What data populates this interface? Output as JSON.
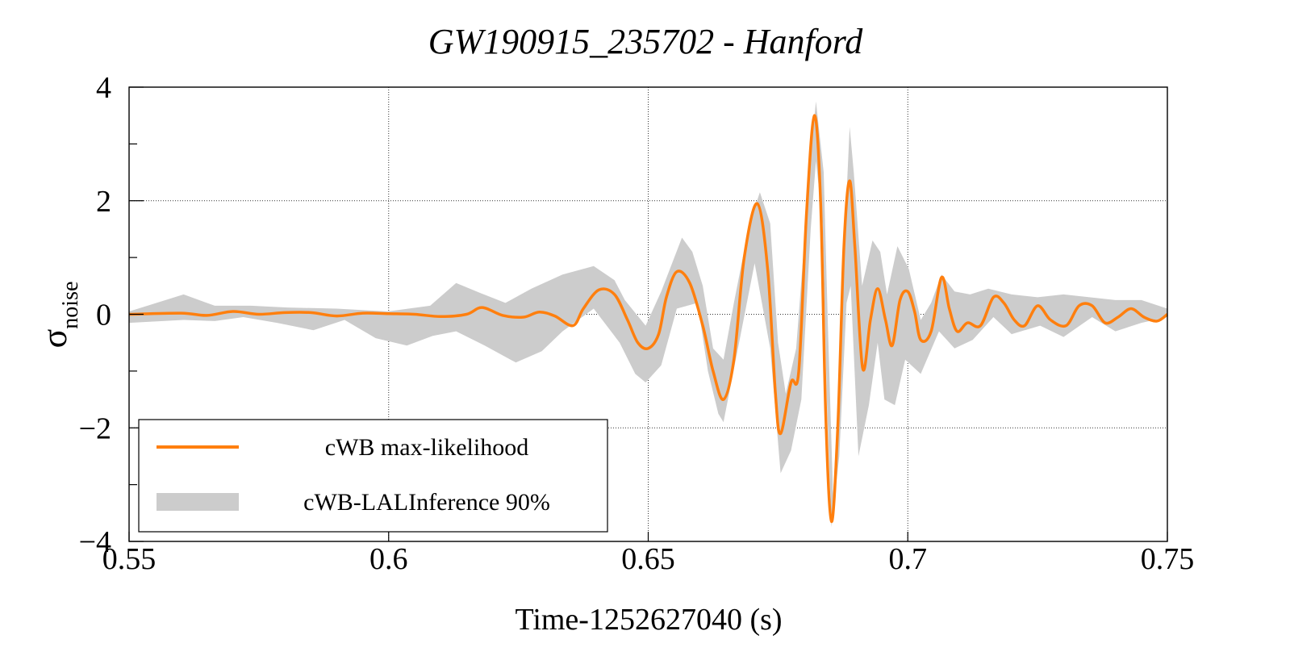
{
  "chart_data": {
    "type": "line",
    "title": "GW190915_235702 - Hanford",
    "xlabel": "Time-1252627040 (s)",
    "ylabel": "σ",
    "ylabel_sub": "noise",
    "xlim": [
      0.55,
      0.75
    ],
    "ylim": [
      -4,
      4
    ],
    "x_ticks": [
      0.55,
      0.6,
      0.65,
      0.7,
      0.75
    ],
    "x_tick_labels": [
      "0.55",
      "0.6",
      "0.65",
      "0.7",
      "0.75"
    ],
    "y_ticks": [
      -4,
      -2,
      0,
      2,
      4
    ],
    "y_tick_labels": [
      "−4",
      "−2",
      "0",
      "2",
      "4"
    ],
    "y_minor_ticks": [
      -3,
      -1,
      1,
      3
    ],
    "grid": true,
    "legend_position": "bottom-left",
    "colors": {
      "line": "#ff7f0e",
      "band": "#cccccc"
    },
    "series": [
      {
        "name": "cWB max-likelihood",
        "kind": "line",
        "points": [
          [
            0.55,
            0.0
          ],
          [
            0.56,
            0.02
          ],
          [
            0.565,
            -0.02
          ],
          [
            0.57,
            0.05
          ],
          [
            0.575,
            0.0
          ],
          [
            0.58,
            0.03
          ],
          [
            0.585,
            0.03
          ],
          [
            0.59,
            -0.03
          ],
          [
            0.595,
            0.02
          ],
          [
            0.6,
            0.01
          ],
          [
            0.605,
            0.0
          ],
          [
            0.61,
            -0.04
          ],
          [
            0.615,
            0.0
          ],
          [
            0.618,
            0.12
          ],
          [
            0.622,
            -0.02
          ],
          [
            0.626,
            -0.05
          ],
          [
            0.629,
            0.04
          ],
          [
            0.632,
            -0.03
          ],
          [
            0.6355,
            -0.2
          ],
          [
            0.6375,
            0.1
          ],
          [
            0.6405,
            0.43
          ],
          [
            0.6435,
            0.35
          ],
          [
            0.646,
            -0.1
          ],
          [
            0.648,
            -0.5
          ],
          [
            0.65,
            -0.6
          ],
          [
            0.652,
            -0.35
          ],
          [
            0.6535,
            0.3
          ],
          [
            0.6555,
            0.75
          ],
          [
            0.658,
            0.55
          ],
          [
            0.6605,
            -0.2
          ],
          [
            0.6625,
            -1.0
          ],
          [
            0.6645,
            -1.5
          ],
          [
            0.6665,
            -0.8
          ],
          [
            0.6685,
            1.0
          ],
          [
            0.671,
            1.95
          ],
          [
            0.673,
            0.8
          ],
          [
            0.6745,
            -1.4
          ],
          [
            0.6755,
            -2.1
          ],
          [
            0.6775,
            -1.2
          ],
          [
            0.679,
            -1.0
          ],
          [
            0.6805,
            1.8
          ],
          [
            0.682,
            3.5
          ],
          [
            0.6832,
            2.0
          ],
          [
            0.6842,
            -1.8
          ],
          [
            0.6853,
            -3.65
          ],
          [
            0.6865,
            -2.0
          ],
          [
            0.6877,
            1.2
          ],
          [
            0.6888,
            2.35
          ],
          [
            0.6898,
            1.2
          ],
          [
            0.6913,
            -0.95
          ],
          [
            0.6928,
            -0.1
          ],
          [
            0.6942,
            0.45
          ],
          [
            0.6957,
            -0.1
          ],
          [
            0.697,
            -0.55
          ],
          [
            0.6985,
            0.25
          ],
          [
            0.7,
            0.4
          ],
          [
            0.7013,
            0.05
          ],
          [
            0.7025,
            -0.45
          ],
          [
            0.7045,
            -0.3
          ],
          [
            0.7065,
            0.65
          ],
          [
            0.708,
            0.1
          ],
          [
            0.7095,
            -0.3
          ],
          [
            0.7115,
            -0.15
          ],
          [
            0.714,
            -0.2
          ],
          [
            0.7165,
            0.3
          ],
          [
            0.7185,
            0.2
          ],
          [
            0.7205,
            -0.1
          ],
          [
            0.7225,
            -0.2
          ],
          [
            0.725,
            0.15
          ],
          [
            0.7275,
            -0.1
          ],
          [
            0.7305,
            -0.2
          ],
          [
            0.733,
            0.15
          ],
          [
            0.7355,
            0.15
          ],
          [
            0.738,
            -0.15
          ],
          [
            0.7405,
            -0.05
          ],
          [
            0.743,
            0.1
          ],
          [
            0.7455,
            -0.05
          ],
          [
            0.748,
            -0.12
          ],
          [
            0.75,
            0.0
          ]
        ]
      },
      {
        "name": "cWB-LALInference 90%",
        "kind": "band",
        "upper": [
          [
            0.55,
            0.05
          ],
          [
            0.5605,
            0.35
          ],
          [
            0.5665,
            0.15
          ],
          [
            0.5735,
            0.15
          ],
          [
            0.5805,
            0.12
          ],
          [
            0.59,
            0.1
          ],
          [
            0.5998,
            0.05
          ],
          [
            0.608,
            0.15
          ],
          [
            0.613,
            0.55
          ],
          [
            0.6175,
            0.38
          ],
          [
            0.6225,
            0.2
          ],
          [
            0.6275,
            0.45
          ],
          [
            0.6335,
            0.7
          ],
          [
            0.6395,
            0.85
          ],
          [
            0.6435,
            0.6
          ],
          [
            0.6455,
            0.25
          ],
          [
            0.6495,
            -0.2
          ],
          [
            0.6525,
            0.4
          ],
          [
            0.6565,
            1.35
          ],
          [
            0.6585,
            1.1
          ],
          [
            0.6605,
            0.5
          ],
          [
            0.6625,
            -0.6
          ],
          [
            0.6645,
            -0.8
          ],
          [
            0.6665,
            0.2
          ],
          [
            0.6695,
            1.6
          ],
          [
            0.6715,
            2.15
          ],
          [
            0.6735,
            1.6
          ],
          [
            0.675,
            -0.5
          ],
          [
            0.6765,
            -1.4
          ],
          [
            0.6785,
            -0.6
          ],
          [
            0.6815,
            3.0
          ],
          [
            0.6823,
            3.75
          ],
          [
            0.6838,
            2.5
          ],
          [
            0.6846,
            -0.2
          ],
          [
            0.6856,
            -3.2
          ],
          [
            0.6866,
            -1.5
          ],
          [
            0.6878,
            1.3
          ],
          [
            0.6888,
            3.3
          ],
          [
            0.6896,
            2.5
          ],
          [
            0.6912,
            0.5
          ],
          [
            0.6932,
            1.3
          ],
          [
            0.6947,
            1.1
          ],
          [
            0.696,
            0.35
          ],
          [
            0.698,
            1.2
          ],
          [
            0.7002,
            0.8
          ],
          [
            0.7025,
            -0.1
          ],
          [
            0.7045,
            0.2
          ],
          [
            0.7065,
            0.7
          ],
          [
            0.709,
            0.4
          ],
          [
            0.712,
            0.35
          ],
          [
            0.7155,
            0.45
          ],
          [
            0.72,
            0.35
          ],
          [
            0.725,
            0.3
          ],
          [
            0.73,
            0.35
          ],
          [
            0.735,
            0.3
          ],
          [
            0.74,
            0.25
          ],
          [
            0.745,
            0.25
          ],
          [
            0.75,
            0.1
          ]
        ],
        "lower": [
          [
            0.55,
            -0.15
          ],
          [
            0.5605,
            -0.1
          ],
          [
            0.5665,
            -0.12
          ],
          [
            0.572,
            -0.05
          ],
          [
            0.5785,
            -0.15
          ],
          [
            0.5855,
            -0.28
          ],
          [
            0.5915,
            -0.1
          ],
          [
            0.5975,
            -0.42
          ],
          [
            0.6035,
            -0.55
          ],
          [
            0.6085,
            -0.38
          ],
          [
            0.613,
            -0.3
          ],
          [
            0.6185,
            -0.55
          ],
          [
            0.6245,
            -0.85
          ],
          [
            0.6295,
            -0.65
          ],
          [
            0.6335,
            -0.3
          ],
          [
            0.6395,
            0.1
          ],
          [
            0.6445,
            -0.5
          ],
          [
            0.6475,
            -1.05
          ],
          [
            0.6495,
            -1.2
          ],
          [
            0.6525,
            -0.9
          ],
          [
            0.6555,
            0.1
          ],
          [
            0.6595,
            0.2
          ],
          [
            0.6615,
            -1.0
          ],
          [
            0.6635,
            -1.75
          ],
          [
            0.6645,
            -1.9
          ],
          [
            0.6675,
            -0.5
          ],
          [
            0.6705,
            0.9
          ],
          [
            0.6735,
            -0.6
          ],
          [
            0.6755,
            -2.8
          ],
          [
            0.6775,
            -2.4
          ],
          [
            0.6795,
            -1.5
          ],
          [
            0.6813,
            1.5
          ],
          [
            0.6823,
            2.7
          ],
          [
            0.6836,
            1.6
          ],
          [
            0.6844,
            -1.5
          ],
          [
            0.6853,
            -3.75
          ],
          [
            0.6868,
            -2.5
          ],
          [
            0.6882,
            0.2
          ],
          [
            0.689,
            0.5
          ],
          [
            0.6905,
            -2.5
          ],
          [
            0.6925,
            -1.6
          ],
          [
            0.6942,
            -0.5
          ],
          [
            0.6955,
            -1.5
          ],
          [
            0.6975,
            -1.6
          ],
          [
            0.6995,
            -0.8
          ],
          [
            0.7025,
            -1.05
          ],
          [
            0.706,
            -0.3
          ],
          [
            0.709,
            -0.6
          ],
          [
            0.7125,
            -0.45
          ],
          [
            0.7165,
            -0.05
          ],
          [
            0.72,
            -0.35
          ],
          [
            0.7255,
            -0.2
          ],
          [
            0.73,
            -0.4
          ],
          [
            0.7355,
            -0.05
          ],
          [
            0.74,
            -0.3
          ],
          [
            0.745,
            -0.15
          ],
          [
            0.75,
            -0.05
          ]
        ]
      }
    ]
  }
}
